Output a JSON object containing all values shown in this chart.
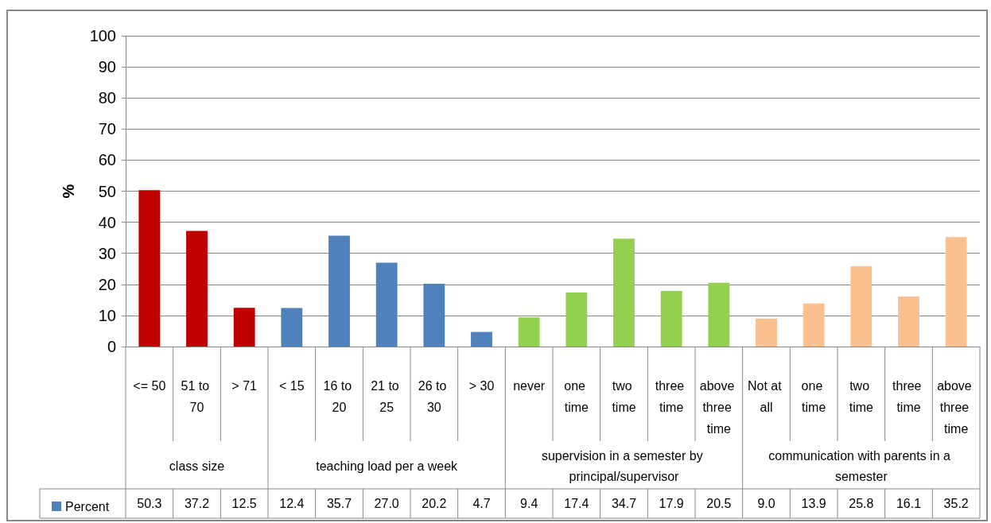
{
  "chart_data": {
    "type": "bar",
    "ylabel": "%",
    "categories": [
      "<= 50",
      "51 to 70",
      "> 71",
      "< 15",
      "16 to 20",
      "21 to 25",
      "26 to 30",
      "> 30",
      "never",
      "one time",
      "two time",
      "three time",
      "above three time",
      "Not at all",
      "one time",
      "two time",
      "three time",
      "above three time"
    ],
    "series": [
      {
        "name": "Percent",
        "color": "#4f81bd",
        "values": [
          50.3,
          37.2,
          12.5,
          12.4,
          35.7,
          27.0,
          20.2,
          4.7,
          9.4,
          17.4,
          34.7,
          17.9,
          20.5,
          9.0,
          13.9,
          25.8,
          16.1,
          35.2
        ],
        "colors": [
          "#c00000",
          "#c00000",
          "#c00000",
          "#4f81bd",
          "#4f81bd",
          "#4f81bd",
          "#4f81bd",
          "#4f81bd",
          "#92d050",
          "#92d050",
          "#92d050",
          "#92d050",
          "#92d050",
          "#fac090",
          "#fac090",
          "#fac090",
          "#fac090",
          "#fac090"
        ]
      }
    ],
    "annotations": [
      "class size",
      "teaching load per a week",
      "supervision in a semester by principal/supervisor",
      "communication with parents in a semester"
    ],
    "value_labels": [
      "50.3",
      "37.2",
      "12.5",
      "12.4",
      "35.7",
      "27.0",
      "20.2",
      "4.7",
      "9.4",
      "17.4",
      "34.7",
      "17.9",
      "20.5",
      "9.0",
      "13.9",
      "25.8",
      "16.1",
      "35.2"
    ],
    "ylim": [
      0,
      100
    ],
    "yticks": [
      0,
      10,
      20,
      30,
      40,
      50,
      60,
      70,
      80,
      90,
      100
    ],
    "grid": "y",
    "legend": "bottom left"
  }
}
